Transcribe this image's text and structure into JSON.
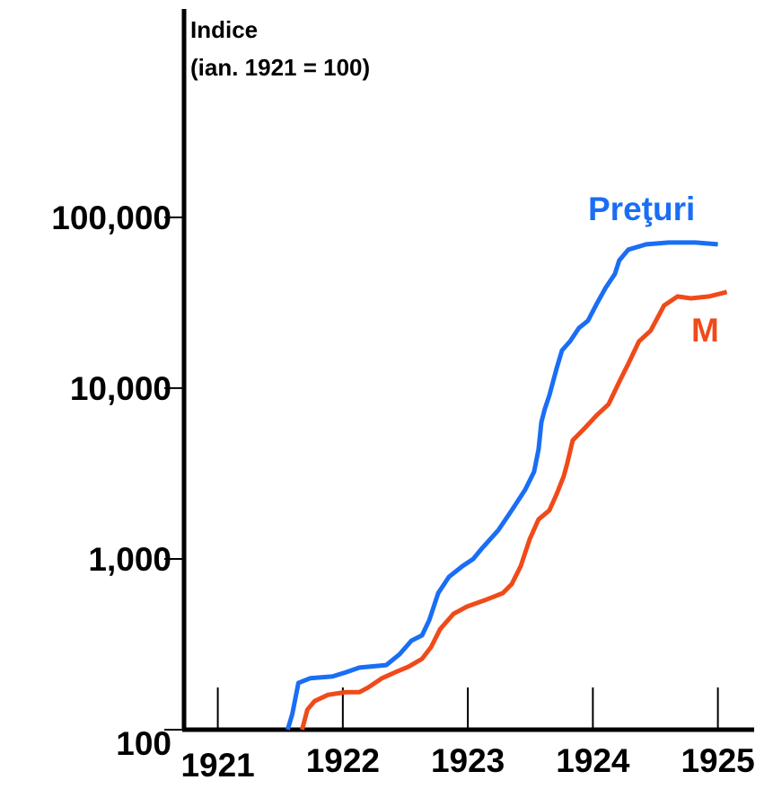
{
  "chart_data": {
    "type": "line",
    "y_label": [
      "Indice",
      "(ian. 1921 = 100)"
    ],
    "log_scale": true,
    "xlim": [
      1920.73,
      1925.29
    ],
    "xticks": [
      1921,
      1922,
      1923,
      1924,
      1925
    ],
    "ylim": [
      100,
      1660000
    ],
    "yticks": [
      100,
      {
        "value": 1000,
        "label": "1,000"
      },
      {
        "value": 10000,
        "label": "10,000"
      },
      {
        "value": 100000,
        "label": "100,000"
      }
    ],
    "series": [
      {
        "name": "Preţuri",
        "color": "#1a6ef5",
        "x": [
          1921.559,
          1921.595,
          1921.616,
          1921.645,
          1921.738,
          1921.918,
          1922.025,
          1922.133,
          1922.348,
          1922.455,
          1922.548,
          1922.634,
          1922.692,
          1922.763,
          1922.849,
          1922.957,
          1923.043,
          1923.115,
          1923.244,
          1923.351,
          1923.459,
          1923.53,
          1923.566,
          1923.588,
          1923.616,
          1923.652,
          1923.71,
          1923.753,
          1923.817,
          1923.889,
          1923.961,
          1924.032,
          1924.104,
          1924.176,
          1924.211,
          1924.283,
          1924.427,
          1924.606,
          1924.821,
          1925.0
        ],
        "values": [
          100,
          123,
          147,
          188,
          200,
          205,
          217,
          231,
          239,
          277,
          332,
          357,
          439,
          631,
          785,
          907,
          1000,
          1157,
          1474,
          1925,
          2543,
          3240,
          4387,
          6310,
          7570,
          9070,
          13050,
          16640,
          18780,
          22520,
          24820,
          31260,
          38850,
          46600,
          55900,
          64700,
          69500,
          71200,
          71200,
          69500
        ]
      },
      {
        "name": "M",
        "color": "#f04a1a",
        "x": [
          1921.674,
          1921.717,
          1921.774,
          1921.882,
          1922.025,
          1922.133,
          1922.204,
          1922.312,
          1922.419,
          1922.527,
          1922.634,
          1922.706,
          1922.778,
          1922.885,
          1922.993,
          1923.136,
          1923.28,
          1923.351,
          1923.423,
          1923.495,
          1923.566,
          1923.652,
          1923.71,
          1923.767,
          1923.796,
          1923.839,
          1923.925,
          1924.032,
          1924.125,
          1924.211,
          1924.283,
          1924.369,
          1924.462,
          1924.57,
          1924.677,
          1924.785,
          1924.928,
          1925.072
        ],
        "values": [
          100,
          131,
          147,
          160,
          166,
          166,
          177,
          200,
          217,
          234,
          260,
          305,
          388,
          477,
          526,
          573,
          631,
          712,
          907,
          1305,
          1705,
          1925,
          2393,
          3050,
          3655,
          4950,
          5730,
          6950,
          8040,
          10880,
          13870,
          18780,
          21720,
          30500,
          34400,
          33560,
          34400,
          36550
        ]
      }
    ]
  }
}
